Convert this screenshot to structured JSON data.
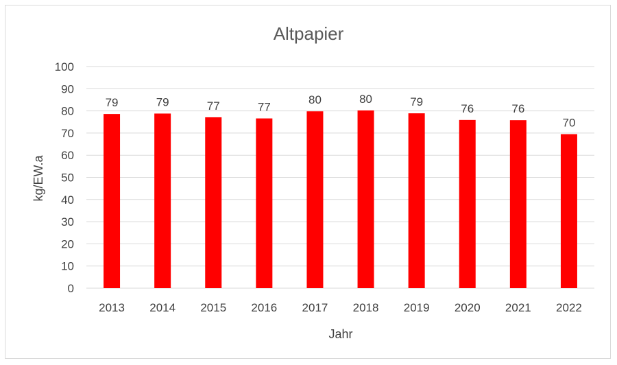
{
  "chart_data": {
    "type": "bar",
    "title": "Altpapier",
    "xlabel": "Jahr",
    "ylabel": "kg/EW.a",
    "categories": [
      "2013",
      "2014",
      "2015",
      "2016",
      "2017",
      "2018",
      "2019",
      "2020",
      "2021",
      "2022"
    ],
    "values": [
      78.6,
      78.8,
      77.1,
      76.6,
      79.8,
      80.2,
      78.9,
      75.9,
      75.8,
      69.5
    ],
    "data_labels": [
      "79",
      "79",
      "77",
      "77",
      "80",
      "80",
      "79",
      "76",
      "76",
      "70"
    ],
    "ylim": [
      0,
      100
    ],
    "yticks": [
      "0",
      "10",
      "20",
      "30",
      "40",
      "50",
      "60",
      "70",
      "80",
      "90",
      "100"
    ],
    "grid": true,
    "legend": "none",
    "bar_color": "#ff0000"
  }
}
